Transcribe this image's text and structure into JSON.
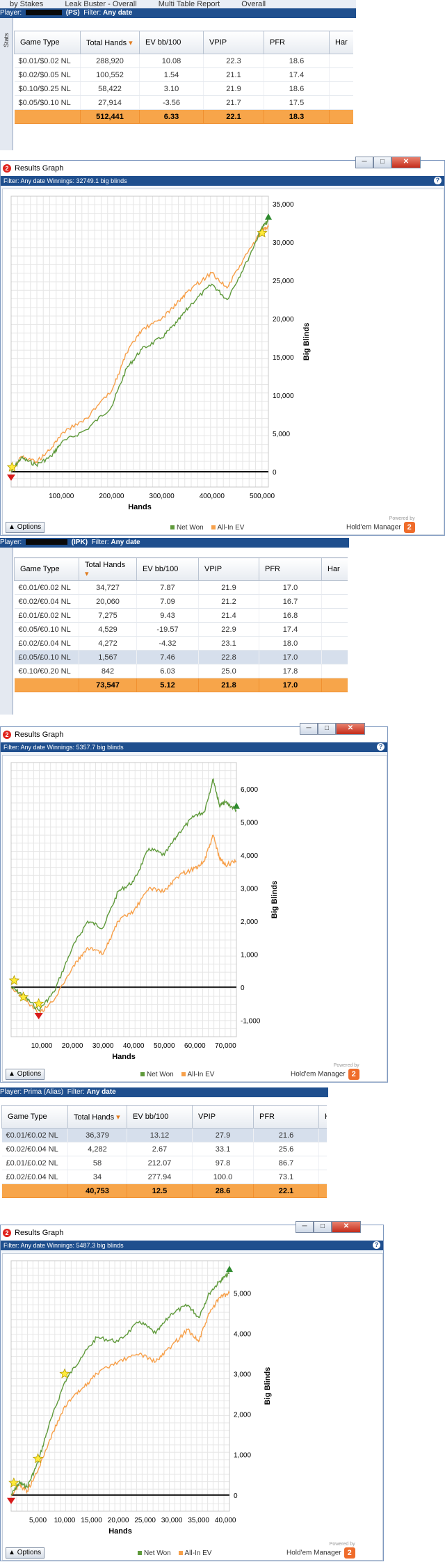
{
  "top": {
    "tabs": [
      "by Stakes",
      "Leak Buster - Overall",
      "Multi Table Report",
      "Overall"
    ],
    "player_label": "Player:",
    "player_site": "(PS)",
    "filter_label": "Filter:",
    "filter_value": "Any date",
    "stats_sidebar": "Stats"
  },
  "columns": [
    "Game Type",
    "Total Hands",
    "EV bb/100",
    "VPIP",
    "PFR",
    "Har"
  ],
  "table1": {
    "rows": [
      [
        "$0.01/$0.02 NL",
        "288,920",
        "10.08",
        "22.3",
        "18.6"
      ],
      [
        "$0.02/$0.05 NL",
        "100,552",
        "1.54",
        "21.1",
        "17.4"
      ],
      [
        "$0.10/$0.25 NL",
        "58,422",
        "3.10",
        "21.9",
        "18.6"
      ],
      [
        "$0.05/$0.10 NL",
        "27,914",
        "-3.56",
        "21.7",
        "17.5"
      ]
    ],
    "total": [
      "",
      "512,441",
      "6.33",
      "22.1",
      "18.3"
    ]
  },
  "graph1": {
    "window_title": "Results Graph",
    "filter_text": "Filter: Any date Winnings: 32749.1 big blinds",
    "xlabel": "Hands",
    "ylabel": "Big Blinds",
    "options": "Options",
    "legend_net": "Net Won",
    "legend_ev": "All-In EV",
    "powered": "Powered by",
    "brand": "Hold'em Manager",
    "brand_logo": "2"
  },
  "mid": {
    "player_label": "Player:",
    "player_site": "(IPK)",
    "filter_label": "Filter:",
    "filter_value": "Any date"
  },
  "table2": {
    "rows": [
      [
        "€0.01/€0.02 NL",
        "34,727",
        "7.87",
        "21.9",
        "17.0"
      ],
      [
        "€0.02/€0.04 NL",
        "20,060",
        "7.09",
        "21.2",
        "16.7"
      ],
      [
        "£0.01/£0.02 NL",
        "7,275",
        "9.43",
        "21.4",
        "16.8"
      ],
      [
        "€0.05/€0.10 NL",
        "4,529",
        "-19.57",
        "22.9",
        "17.4"
      ],
      [
        "£0.02/£0.04 NL",
        "4,272",
        "-4.32",
        "23.1",
        "18.0"
      ],
      [
        "£0.05/£0.10 NL",
        "1,567",
        "7.46",
        "22.8",
        "17.0"
      ],
      [
        "€0.10/€0.20 NL",
        "842",
        "6.03",
        "25.0",
        "17.8"
      ]
    ],
    "total": [
      "",
      "73,547",
      "5.12",
      "21.8",
      "17.0"
    ]
  },
  "graph2": {
    "window_title": "Results Graph",
    "filter_text": "Filter: Any date Winnings: 5357.7 big blinds",
    "xlabel": "Hands",
    "ylabel": "Big Blinds",
    "options": "Options",
    "legend_net": "Net Won",
    "legend_ev": "All-In EV",
    "powered": "Powered by",
    "brand": "Hold'em Manager",
    "brand_logo": "2"
  },
  "bottom": {
    "player_label": "Player: Prima (Alias)",
    "filter_label": "Filter:",
    "filter_value": "Any date"
  },
  "table3": {
    "rows": [
      [
        "€0.01/€0.02 NL",
        "36,379",
        "13.12",
        "27.9",
        "21.6"
      ],
      [
        "€0.02/€0.04 NL",
        "4,282",
        "2.67",
        "33.1",
        "25.6"
      ],
      [
        "£0.01/£0.02 NL",
        "58",
        "212.07",
        "97.8",
        "86.7"
      ],
      [
        "£0.02/£0.04 NL",
        "34",
        "277.94",
        "100.0",
        "73.1"
      ]
    ],
    "total": [
      "",
      "40,753",
      "12.5",
      "28.6",
      "22.1"
    ]
  },
  "graph3": {
    "window_title": "Results Graph",
    "filter_text": "Filter: Any date Winnings: 5487.3 big blinds",
    "xlabel": "Hands",
    "ylabel": "Big Blinds",
    "options": "Options",
    "legend_net": "Net Won",
    "legend_ev": "All-In EV",
    "powered": "Powered by",
    "brand": "Hold'em Manager",
    "brand_logo": "2"
  },
  "colors": {
    "net": "#5f9a3b",
    "ev": "#f7a04a",
    "header": "#1f4f8e",
    "total_row": "#f7a54a"
  },
  "chart_data": [
    {
      "type": "line",
      "xlabel": "Hands",
      "ylabel": "Big Blinds",
      "xticks": [
        100000,
        200000,
        300000,
        400000,
        500000
      ],
      "xtick_labels": [
        "100,000",
        "200,000",
        "300,000",
        "400,000",
        "500,000"
      ],
      "yticks": [
        0,
        5000,
        10000,
        15000,
        20000,
        25000,
        30000,
        35000
      ],
      "ytick_labels": [
        "0",
        "5,000",
        "10,000",
        "15,000",
        "20,000",
        "25,000",
        "30,000",
        "35,000"
      ],
      "xlim": [
        0,
        512441
      ],
      "ylim": [
        -2000,
        36000
      ],
      "series": [
        {
          "name": "Net Won",
          "x": [
            0,
            20000,
            50000,
            80000,
            100000,
            150000,
            200000,
            230000,
            260000,
            300000,
            330000,
            360000,
            400000,
            430000,
            470000,
            500000,
            512441
          ],
          "values": [
            0,
            1800,
            900,
            2000,
            3800,
            5500,
            8500,
            13500,
            16000,
            17500,
            19500,
            22000,
            24500,
            22500,
            27500,
            32000,
            32749
          ]
        },
        {
          "name": "All-In EV",
          "x": [
            0,
            20000,
            50000,
            80000,
            100000,
            150000,
            200000,
            230000,
            260000,
            300000,
            330000,
            360000,
            400000,
            430000,
            470000,
            500000,
            512441
          ],
          "values": [
            0,
            2000,
            1300,
            3000,
            5000,
            7000,
            10500,
            15500,
            18500,
            20000,
            22000,
            24000,
            26000,
            24000,
            28500,
            31500,
            32000
          ]
        }
      ]
    },
    {
      "type": "line",
      "xlabel": "Hands",
      "ylabel": "Big Blinds",
      "xticks": [
        10000,
        20000,
        30000,
        40000,
        50000,
        60000,
        70000
      ],
      "xtick_labels": [
        "10,000",
        "20,000",
        "30,000",
        "40,000",
        "50,000",
        "60,000",
        "70,000"
      ],
      "yticks": [
        -1000,
        0,
        1000,
        2000,
        3000,
        4000,
        5000,
        6000
      ],
      "ytick_labels": [
        "-1,000",
        "0",
        "1,000",
        "2,000",
        "3,000",
        "4,000",
        "5,000",
        "6,000"
      ],
      "xlim": [
        0,
        73547
      ],
      "ylim": [
        -1500,
        6800
      ],
      "series": [
        {
          "name": "Net Won",
          "x": [
            0,
            4000,
            9000,
            14000,
            20000,
            25000,
            30000,
            35000,
            40000,
            45000,
            50000,
            55000,
            60000,
            63000,
            66000,
            68000,
            70000,
            73547
          ],
          "values": [
            0,
            -250,
            -700,
            -150,
            1200,
            2000,
            1800,
            2900,
            3200,
            4200,
            4000,
            4700,
            5200,
            5300,
            6300,
            5500,
            5600,
            5358
          ]
        },
        {
          "name": "All-In EV",
          "x": [
            0,
            4000,
            9000,
            14000,
            20000,
            25000,
            30000,
            35000,
            40000,
            45000,
            50000,
            55000,
            60000,
            63000,
            66000,
            68000,
            70000,
            73547
          ],
          "values": [
            0,
            -300,
            -800,
            -400,
            600,
            1200,
            1000,
            2000,
            2300,
            3000,
            2900,
            3400,
            3600,
            3800,
            4600,
            3900,
            3700,
            3800
          ]
        }
      ]
    },
    {
      "type": "line",
      "xlabel": "Hands",
      "ylabel": "Big Blinds",
      "xticks": [
        5000,
        10000,
        15000,
        20000,
        25000,
        30000,
        35000,
        40000
      ],
      "xtick_labels": [
        "5,000",
        "10,000",
        "15,000",
        "20,000",
        "25,000",
        "30,000",
        "35,000",
        "40,000"
      ],
      "yticks": [
        0,
        1000,
        2000,
        3000,
        4000,
        5000
      ],
      "ytick_labels": [
        "0",
        "1,000",
        "2,000",
        "3,000",
        "4,000",
        "5,000"
      ],
      "xlim": [
        0,
        40753
      ],
      "ylim": [
        -400,
        5800
      ],
      "series": [
        {
          "name": "Net Won",
          "x": [
            0,
            1500,
            3000,
            5000,
            7000,
            10000,
            13000,
            16000,
            20000,
            24000,
            27000,
            30000,
            33000,
            35000,
            37000,
            39000,
            40753
          ],
          "values": [
            0,
            300,
            200,
            800,
            1700,
            2800,
            3400,
            3900,
            3800,
            4300,
            4000,
            4500,
            4700,
            4400,
            5000,
            5300,
            5487
          ]
        },
        {
          "name": "All-In EV",
          "x": [
            0,
            1500,
            3000,
            5000,
            7000,
            10000,
            13000,
            16000,
            20000,
            24000,
            27000,
            30000,
            33000,
            35000,
            37000,
            39000,
            40753
          ],
          "values": [
            0,
            250,
            100,
            600,
            1300,
            2200,
            2600,
            3000,
            3300,
            3500,
            3300,
            3700,
            4100,
            3800,
            4500,
            4900,
            5000
          ]
        }
      ]
    }
  ]
}
